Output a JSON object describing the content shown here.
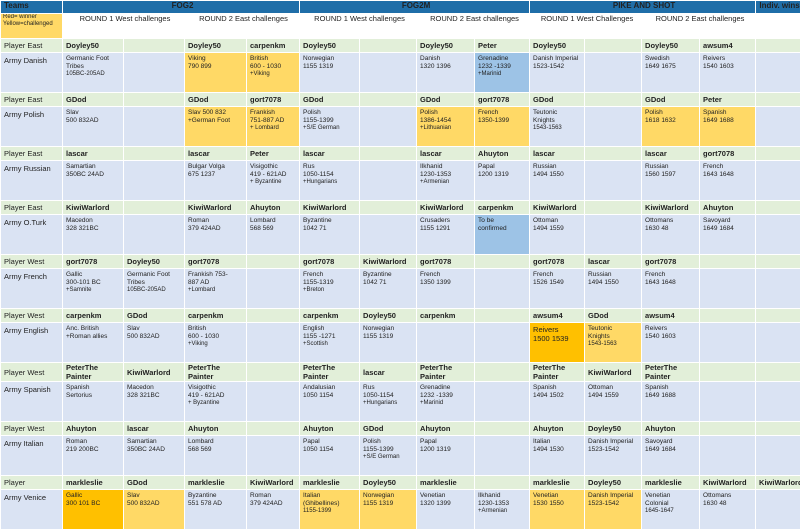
{
  "header": {
    "teams": "Teams",
    "legend": [
      "Red= winner",
      "Yellow=challenged"
    ],
    "groups": [
      "FOG2",
      "FOG2M",
      "PIKE AND SHOT",
      "Indiv. wins"
    ],
    "rounds": [
      "ROUND  1 West challenges",
      "ROUND  2 East challenges",
      "ROUND  1 West challenges",
      "ROUND  2 East challenges",
      "ROUND  1 West Challenges",
      "ROUND  2 East challenges"
    ]
  },
  "sections": [
    {
      "player_label": "Player East",
      "army_label": "Army Danish",
      "players": [
        "Doyley50",
        "",
        "Doyley50",
        "carpenkm",
        "Doyley50",
        "",
        "Doyley50",
        "Peter",
        "Doyley50",
        "",
        "Doyley50",
        "awsum4",
        ""
      ],
      "armies": [
        [
          "Germanic Foot",
          "Tribes",
          "105BC-205AD"
        ],
        [],
        [
          "Viking",
          "790 899"
        ],
        [
          "British",
          "600 - 1030",
          "+Viking"
        ],
        [
          "Norwegian",
          "1155 1319"
        ],
        [],
        [
          "Danish",
          "1320  1396"
        ],
        [
          "Grenadine",
          "1232 -1339",
          "+Marinid"
        ],
        [
          "Danish Imperial",
          "1523-1542"
        ],
        [],
        [
          "Swedish",
          "1649 1675"
        ],
        [
          "Reivers",
          "1540 1603"
        ],
        []
      ],
      "fills": [
        "",
        "",
        "y",
        "y",
        "",
        "",
        "",
        "b",
        "",
        "",
        "",
        "",
        ""
      ]
    },
    {
      "player_label": "Player East",
      "army_label": "Army Polish",
      "players": [
        "GDod",
        "",
        "GDod",
        "gort7078",
        "GDod",
        "",
        "GDod",
        "gort7078",
        "GDod",
        "",
        "GDod",
        "Peter",
        ""
      ],
      "armies": [
        [
          "Slav",
          "500 832AD"
        ],
        [],
        [
          "Slav 500 832",
          "+German Foot"
        ],
        [
          "Frankish",
          "751-887 AD",
          "+ Lombard"
        ],
        [
          "Polish",
          "1155-1399",
          "+S/E German"
        ],
        [],
        [
          "Polish",
          "1386-1454",
          "+Lithuanian"
        ],
        [
          "French",
          "1350-1399"
        ],
        [
          "Teutonic",
          "Knights",
          "1543-1563"
        ],
        [],
        [
          "Polish",
          "1618 1632"
        ],
        [
          "Spanish",
          "1649 1688"
        ],
        []
      ],
      "fills": [
        "",
        "",
        "y",
        "y",
        "",
        "",
        "y",
        "y",
        "",
        "",
        "y",
        "y",
        ""
      ]
    },
    {
      "player_label": "Player East",
      "army_label": "Army Russian",
      "players": [
        "lascar",
        "",
        "lascar",
        "Peter",
        "lascar",
        "",
        "lascar",
        "Ahuyton",
        "lascar",
        "",
        "lascar",
        "gort7078",
        ""
      ],
      "armies": [
        [
          "Samartian",
          "350BC  24AD"
        ],
        [],
        [
          "Bulgar Volga",
          "675 1237"
        ],
        [
          "Visigothic",
          "419 - 621AD",
          "+ Byzantine"
        ],
        [
          "Rus",
          "1050-1154",
          "+Hungarians"
        ],
        [],
        [
          "Ilkhanid",
          "1230-1353",
          "+Armenian"
        ],
        [
          "Papal",
          "1200 1319"
        ],
        [
          "Russian",
          "1494 1550"
        ],
        [],
        [
          "Russian",
          "1560 1597"
        ],
        [
          "French",
          "1643 1648"
        ],
        []
      ],
      "fills": [
        "",
        "",
        "",
        "",
        "",
        "",
        "",
        "",
        "",
        "",
        "",
        "",
        ""
      ]
    },
    {
      "player_label": "Player East",
      "army_label": "Army O.Turk",
      "players": [
        "KiwiWarlord",
        "",
        "KiwiWarlord",
        "Ahuyton",
        "KiwiWarlord",
        "",
        "KiwiWarlord",
        "carpenkm",
        "KiwiWarlord",
        "",
        "KiwiWarlord",
        "Ahuyton",
        ""
      ],
      "armies": [
        [
          "Macedon",
          "328 321BC"
        ],
        [],
        [
          "Roman",
          "379 424AD"
        ],
        [
          "Lombard",
          "568 569"
        ],
        [
          "Byzantine",
          "1042 71"
        ],
        [],
        [
          "Crusaders",
          "1155 1291"
        ],
        [
          "To be",
          "confirmed"
        ],
        [
          "Ottoman",
          "1494 1559"
        ],
        [],
        [
          "Ottomans",
          "1630 48"
        ],
        [
          "Savoyard",
          "1649 1684"
        ],
        []
      ],
      "fills": [
        "",
        "",
        "",
        "",
        "",
        "",
        "",
        "b",
        "",
        "",
        "",
        "",
        ""
      ]
    },
    {
      "player_label": "Player West",
      "army_label": "Army French",
      "players": [
        "gort7078",
        "Doyley50",
        "gort7078",
        "",
        "gort7078",
        "KiwiWarlord",
        "gort7078",
        "",
        "gort7078",
        "lascar",
        "gort7078",
        "",
        ""
      ],
      "armies": [
        [
          "Gallic",
          "300-101 BC",
          "+Samnite"
        ],
        [
          "Germanic Foot",
          "Tribes",
          "105BC-205AD"
        ],
        [
          "Frankish 753-",
          "887 AD",
          "+Lombard"
        ],
        [],
        [
          "French",
          "1155-1319",
          "+Breton"
        ],
        [
          "Byzantine",
          "1042 71"
        ],
        [
          "French",
          "1350 1399"
        ],
        [],
        [
          "French",
          "1526 1549"
        ],
        [
          "Russian",
          "1494 1550"
        ],
        [
          "French",
          "1643 1648"
        ],
        [],
        []
      ],
      "fills": [
        "",
        "",
        "",
        "",
        "",
        "",
        "",
        "",
        "",
        "",
        "",
        "",
        ""
      ]
    },
    {
      "player_label": "Player West",
      "army_label": "Army English",
      "players": [
        "carpenkm",
        "GDod",
        "carpenkm",
        "",
        "carpenkm",
        "Doyley50",
        "carpenkm",
        "",
        "awsum4",
        "GDod",
        "awsum4",
        "",
        ""
      ],
      "armies": [
        [
          "Anc. British",
          "+Roman allies"
        ],
        [
          "Slav",
          "500 832AD"
        ],
        [
          "British",
          "600 - 1030",
          "+Viking"
        ],
        [],
        [
          "English",
          "1155 -1271",
          "+Scottish"
        ],
        [
          "Norwegian",
          "1155 1319"
        ],
        [],
        [],
        [
          "Reivers",
          "1500 1539"
        ],
        [
          "Teutonic",
          "Knights",
          "1543-1563"
        ],
        [
          "Reivers",
          "1540 1603"
        ],
        [],
        []
      ],
      "fills": [
        "",
        "",
        "",
        "",
        "",
        "",
        "",
        "",
        "o",
        "y",
        "",
        "",
        ""
      ],
      "winners": [
        false,
        false,
        false,
        false,
        false,
        false,
        false,
        false,
        true,
        false,
        false,
        false,
        false
      ]
    },
    {
      "player_label": "Player West",
      "army_label": "Army Spanish",
      "players": [
        "PeterThe Painter",
        "KiwiWarlord",
        "PeterThe Painter",
        "",
        "PeterThe Painter",
        "lascar",
        "PeterThe Painter",
        "",
        "PeterThe Painter",
        "KiwiWarlord",
        "PeterThe Painter",
        "",
        ""
      ],
      "armies": [
        [
          "Spanish",
          "Sertorius"
        ],
        [
          "Macedon",
          "328 321BC"
        ],
        [
          "Visigothic",
          "419 - 621AD",
          "+ Byzantine"
        ],
        [],
        [
          "Andalusian",
          "1050  1154"
        ],
        [
          "Rus",
          "1050-1154",
          "+Hungarians"
        ],
        [
          "Grenadine",
          "1232 -1339",
          "+Marinid"
        ],
        [],
        [
          "Spanish",
          "1494  1502"
        ],
        [
          "Ottoman",
          "1494 1559"
        ],
        [
          "Spanish",
          "1649 1688"
        ],
        [],
        []
      ],
      "fills": [
        "",
        "",
        "",
        "",
        "",
        "",
        "",
        "",
        "",
        "",
        "",
        "",
        ""
      ]
    },
    {
      "player_label": "Player West",
      "army_label": "Army Italian",
      "players": [
        "Ahuyton",
        "lascar",
        "Ahuyton",
        "",
        "Ahuyton",
        "GDod",
        "Ahuyton",
        "",
        "Ahuyton",
        "Doyley50",
        "Ahuyton",
        "",
        ""
      ],
      "armies": [
        [
          "Roman",
          "219 200BC"
        ],
        [
          "Samartian",
          "350BC  24AD"
        ],
        [
          "Lombard",
          "568 569"
        ],
        [],
        [
          "Papal",
          "1050 1154"
        ],
        [
          "Polish",
          "1155-1399",
          "+S/E German"
        ],
        [
          "Papal",
          "1200 1319"
        ],
        [],
        [
          "Italian",
          "1494 1530"
        ],
        [
          "Danish Imperial",
          "1523-1542"
        ],
        [
          "Savoyard",
          "1649 1684"
        ],
        [],
        []
      ],
      "fills": [
        "",
        "",
        "",
        "",
        "",
        "",
        "",
        "",
        "",
        "",
        "",
        "",
        ""
      ]
    },
    {
      "player_label": "Player",
      "army_label": "Army Venice",
      "players": [
        "markleslie",
        "GDod",
        "markleslie",
        "KiwiWarlord",
        "markleslie",
        "Doyley50",
        "markleslie",
        "",
        "markleslie",
        "Doyley50",
        "markleslie",
        "KiwiWarlord",
        "KiwiWarlord"
      ],
      "armies": [
        [
          "Gallic",
          "300 101 BC"
        ],
        [
          "Slav",
          "500 832AD"
        ],
        [
          "Byzantine",
          "551 578 AD"
        ],
        [
          "Roman",
          "379 424AD"
        ],
        [
          "Italian",
          "(Ghibellines)",
          "1155-1399"
        ],
        [
          "Norwegian",
          "1155 1319"
        ],
        [
          "Venetian",
          "1320 1399"
        ],
        [
          "Ilkhanid",
          "1230-1353",
          "+Armenian"
        ],
        [
          "Venetian",
          "1530 1550"
        ],
        [
          "Danish Imperial",
          "1523-1542"
        ],
        [
          "Venetian",
          "Colonial",
          "1645-1647"
        ],
        [
          "Ottomans",
          "1630 48"
        ],
        []
      ],
      "fills": [
        "o",
        "y",
        "",
        "",
        "y",
        "y",
        "",
        "",
        "y",
        "y",
        "",
        "",
        ""
      ]
    }
  ]
}
